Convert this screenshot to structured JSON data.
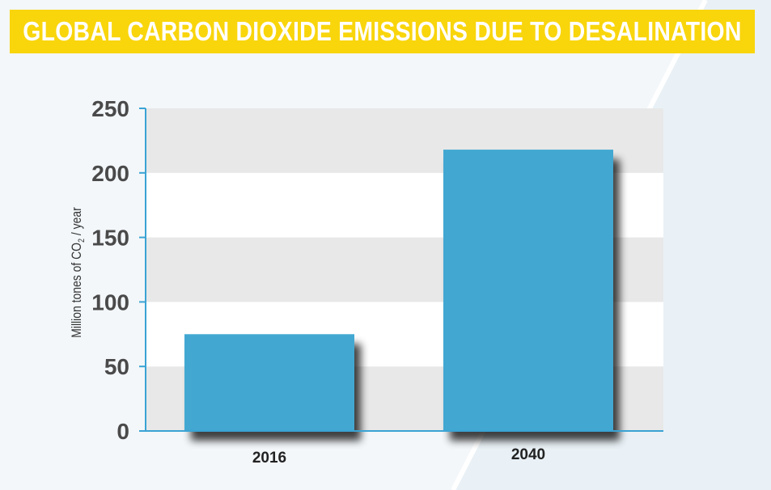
{
  "title": "GLOBAL CARBON DIOXIDE EMISSIONS DUE TO DESALINATION",
  "colors": {
    "banner": "#f9d50c",
    "bar": "#42a8d2",
    "axis": "#3aa3d4",
    "band": "#e8e8e8",
    "background": "#f3f7fa"
  },
  "chart_data": {
    "type": "bar",
    "categories": [
      "2016",
      "2040"
    ],
    "values": [
      75,
      218
    ],
    "title": "GLOBAL CARBON DIOXIDE EMISSIONS DUE TO DESALINATION",
    "xlabel": "",
    "ylabel": "Million tones of CO2 / year",
    "ylabel_parts": {
      "pre": "Million tones of CO",
      "sub": "2",
      "post": " / year"
    },
    "yticks": [
      "0",
      "50",
      "100",
      "150",
      "200",
      "250"
    ],
    "ylim": [
      0,
      250
    ],
    "grid": "alternating-bands",
    "legend": "none"
  }
}
